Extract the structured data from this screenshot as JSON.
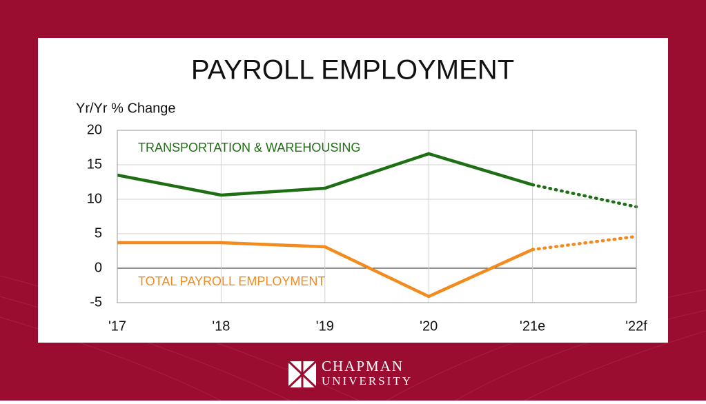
{
  "chart_data": {
    "type": "line",
    "title": "PAYROLL EMPLOYMENT",
    "y_label": "Yr/Yr % Change",
    "categories": [
      "'17",
      "'18",
      "'19",
      "'20",
      "'21e",
      "'22f"
    ],
    "series": [
      {
        "name": "TRANSPORTATION & WAREHOUSING",
        "color": "#1e6e14",
        "values": [
          13.5,
          10.6,
          11.6,
          16.6,
          12.1,
          8.9
        ]
      },
      {
        "name": "TOTAL PAYROLL EMPLOYMENT",
        "color": "#f28a1e",
        "values": [
          3.7,
          3.7,
          3.1,
          -4.1,
          2.7,
          4.6
        ]
      }
    ],
    "dotted_from_index": 4,
    "ylim": [
      -5,
      20
    ],
    "yticks": [
      -5,
      0,
      5,
      10,
      15,
      20
    ],
    "grid": true
  },
  "logo": {
    "line1": "CHAPMAN",
    "line2": "UNIVERSITY"
  }
}
